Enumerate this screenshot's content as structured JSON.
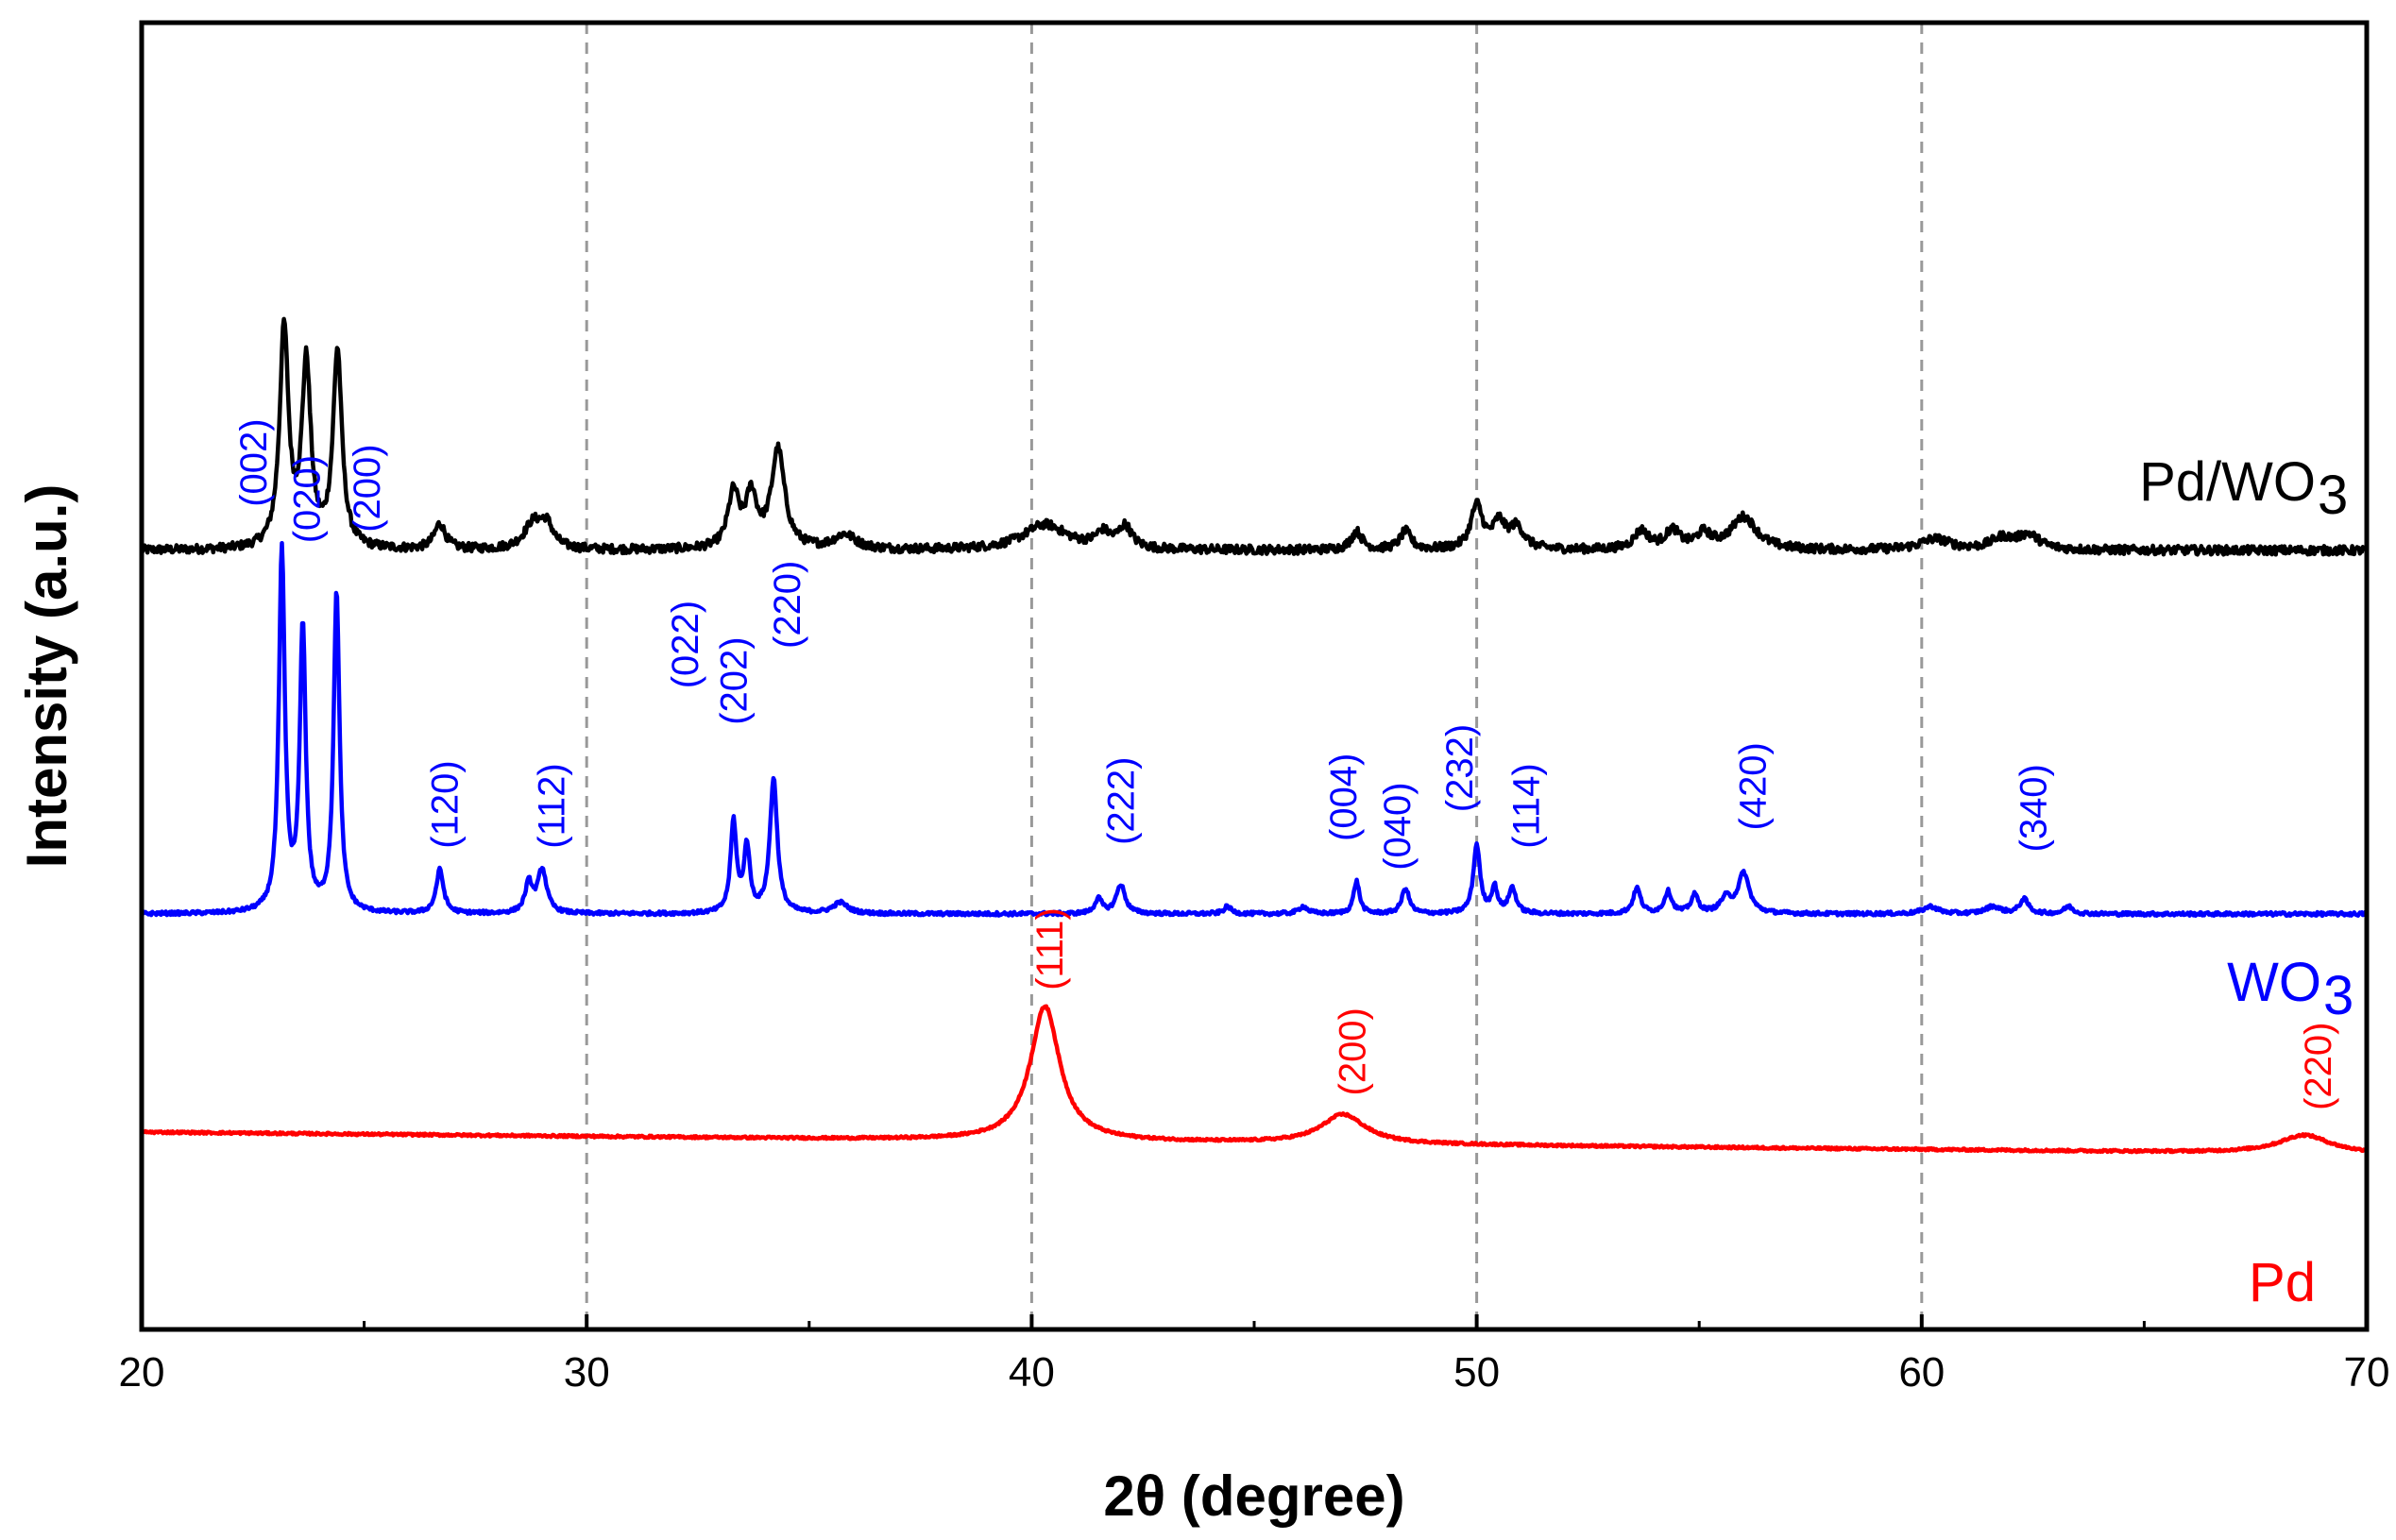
{
  "chart_data": {
    "type": "line",
    "title": "",
    "xlabel": "2θ (degree)",
    "ylabel": "Intensity (a.u.)",
    "xlim": [
      20,
      70
    ],
    "xticks": [
      20,
      30,
      40,
      50,
      60,
      70
    ],
    "xtick_labels": [
      "20",
      "30",
      "40",
      "50",
      "60",
      "70"
    ],
    "vertical_gridlines": [
      30,
      40,
      50,
      60
    ],
    "yticks": "none",
    "series": [
      {
        "name": "Pd/WO3",
        "label_main": "Pd/WO",
        "label_sub": "3",
        "color": "#000000",
        "baseline": 1.0,
        "noise": 0.012,
        "peaks": [
          {
            "x": 23.2,
            "h": 0.6,
            "w": 0.12
          },
          {
            "x": 23.7,
            "h": 0.5,
            "w": 0.12
          },
          {
            "x": 24.4,
            "h": 0.54,
            "w": 0.12
          },
          {
            "x": 26.7,
            "h": 0.07,
            "w": 0.15
          },
          {
            "x": 28.8,
            "h": 0.07,
            "w": 0.25
          },
          {
            "x": 29.1,
            "h": 0.06,
            "w": 0.18
          },
          {
            "x": 33.3,
            "h": 0.15,
            "w": 0.15
          },
          {
            "x": 33.7,
            "h": 0.14,
            "w": 0.15
          },
          {
            "x": 34.3,
            "h": 0.27,
            "w": 0.18
          },
          {
            "x": 35.8,
            "h": 0.04,
            "w": 0.3
          },
          {
            "x": 40.3,
            "h": 0.07,
            "w": 0.6
          },
          {
            "x": 41.6,
            "h": 0.04,
            "w": 0.2
          },
          {
            "x": 42.1,
            "h": 0.06,
            "w": 0.18
          },
          {
            "x": 47.3,
            "h": 0.05,
            "w": 0.15
          },
          {
            "x": 48.4,
            "h": 0.05,
            "w": 0.15
          },
          {
            "x": 50.0,
            "h": 0.12,
            "w": 0.16
          },
          {
            "x": 50.5,
            "h": 0.07,
            "w": 0.16
          },
          {
            "x": 50.9,
            "h": 0.06,
            "w": 0.2
          },
          {
            "x": 53.7,
            "h": 0.05,
            "w": 0.2
          },
          {
            "x": 54.4,
            "h": 0.05,
            "w": 0.2
          },
          {
            "x": 55.1,
            "h": 0.04,
            "w": 0.2
          },
          {
            "x": 56.0,
            "h": 0.09,
            "w": 0.35
          },
          {
            "x": 60.3,
            "h": 0.03,
            "w": 0.4
          },
          {
            "x": 61.8,
            "h": 0.03,
            "w": 0.3
          },
          {
            "x": 62.4,
            "h": 0.04,
            "w": 0.3
          }
        ]
      },
      {
        "name": "WO3",
        "label_main": "WO",
        "label_sub": "3",
        "color": "#0000ff",
        "baseline": 0.0,
        "noise": 0.005,
        "peaks": [
          {
            "x": 23.15,
            "h": 0.99,
            "w": 0.08
          },
          {
            "x": 23.62,
            "h": 0.78,
            "w": 0.08
          },
          {
            "x": 24.38,
            "h": 0.88,
            "w": 0.08
          },
          {
            "x": 26.7,
            "h": 0.12,
            "w": 0.1
          },
          {
            "x": 28.7,
            "h": 0.08,
            "w": 0.1
          },
          {
            "x": 29.0,
            "h": 0.12,
            "w": 0.12
          },
          {
            "x": 33.3,
            "h": 0.25,
            "w": 0.08
          },
          {
            "x": 33.6,
            "h": 0.18,
            "w": 0.08
          },
          {
            "x": 34.2,
            "h": 0.37,
            "w": 0.1
          },
          {
            "x": 35.7,
            "h": 0.03,
            "w": 0.2
          },
          {
            "x": 41.5,
            "h": 0.04,
            "w": 0.1
          },
          {
            "x": 42.0,
            "h": 0.08,
            "w": 0.12
          },
          {
            "x": 44.4,
            "h": 0.02,
            "w": 0.1
          },
          {
            "x": 46.1,
            "h": 0.02,
            "w": 0.12
          },
          {
            "x": 47.3,
            "h": 0.09,
            "w": 0.08
          },
          {
            "x": 48.4,
            "h": 0.07,
            "w": 0.1
          },
          {
            "x": 50.0,
            "h": 0.19,
            "w": 0.09
          },
          {
            "x": 50.4,
            "h": 0.07,
            "w": 0.08
          },
          {
            "x": 50.8,
            "h": 0.07,
            "w": 0.1
          },
          {
            "x": 53.6,
            "h": 0.07,
            "w": 0.1
          },
          {
            "x": 54.3,
            "h": 0.06,
            "w": 0.1
          },
          {
            "x": 54.9,
            "h": 0.05,
            "w": 0.1
          },
          {
            "x": 55.6,
            "h": 0.04,
            "w": 0.15
          },
          {
            "x": 56.0,
            "h": 0.11,
            "w": 0.15
          },
          {
            "x": 60.2,
            "h": 0.02,
            "w": 0.2
          },
          {
            "x": 61.6,
            "h": 0.02,
            "w": 0.2
          },
          {
            "x": 62.3,
            "h": 0.04,
            "w": 0.12
          },
          {
            "x": 63.3,
            "h": 0.02,
            "w": 0.12
          }
        ]
      },
      {
        "name": "Pd",
        "label_main": "Pd",
        "label_sub": "",
        "color": "#ff0000",
        "baseline_start": -0.6,
        "baseline_end": -0.66,
        "noise": 0.003,
        "peaks": [
          {
            "x": 40.3,
            "h": 0.37,
            "w": 0.4
          },
          {
            "x": 47.0,
            "h": 0.08,
            "w": 0.6
          },
          {
            "x": 68.6,
            "h": 0.05,
            "w": 0.7
          }
        ]
      }
    ],
    "annotations": [
      {
        "text": "(002)",
        "x": 22.5,
        "y": 1.12,
        "color": "#0000ff"
      },
      {
        "text": "(020)",
        "x": 23.7,
        "y": 1.02,
        "color": "#0000ff"
      },
      {
        "text": "(200)",
        "x": 25.05,
        "y": 1.05,
        "color": "#0000ff"
      },
      {
        "text": "(120)",
        "x": 26.8,
        "y": 0.18,
        "color": "#0000ff"
      },
      {
        "text": "(112)",
        "x": 29.2,
        "y": 0.18,
        "color": "#0000ff"
      },
      {
        "text": "(022)",
        "x": 32.2,
        "y": 0.62,
        "color": "#0000ff"
      },
      {
        "text": "(202)",
        "x": 33.3,
        "y": 0.52,
        "color": "#0000ff"
      },
      {
        "text": "(220)",
        "x": 34.5,
        "y": 0.73,
        "color": "#0000ff"
      },
      {
        "text": "(222)",
        "x": 42.0,
        "y": 0.19,
        "color": "#0000ff"
      },
      {
        "text": "(004)",
        "x": 47.0,
        "y": 0.2,
        "color": "#0000ff"
      },
      {
        "text": "(040)",
        "x": 48.2,
        "y": 0.12,
        "color": "#0000ff"
      },
      {
        "text": "(232)",
        "x": 49.6,
        "y": 0.28,
        "color": "#0000ff"
      },
      {
        "text": "(114)",
        "x": 51.1,
        "y": 0.18,
        "color": "#0000ff"
      },
      {
        "text": "(420)",
        "x": 56.2,
        "y": 0.23,
        "color": "#0000ff"
      },
      {
        "text": "(340)",
        "x": 62.5,
        "y": 0.17,
        "color": "#0000ff"
      },
      {
        "text": "(111)",
        "x": 40.4,
        "y": -0.21,
        "color": "#ff0000"
      },
      {
        "text": "(200)",
        "x": 47.2,
        "y": -0.5,
        "color": "#ff0000"
      },
      {
        "text": "(220)",
        "x": 68.9,
        "y": -0.54,
        "color": "#ff0000"
      }
    ]
  }
}
